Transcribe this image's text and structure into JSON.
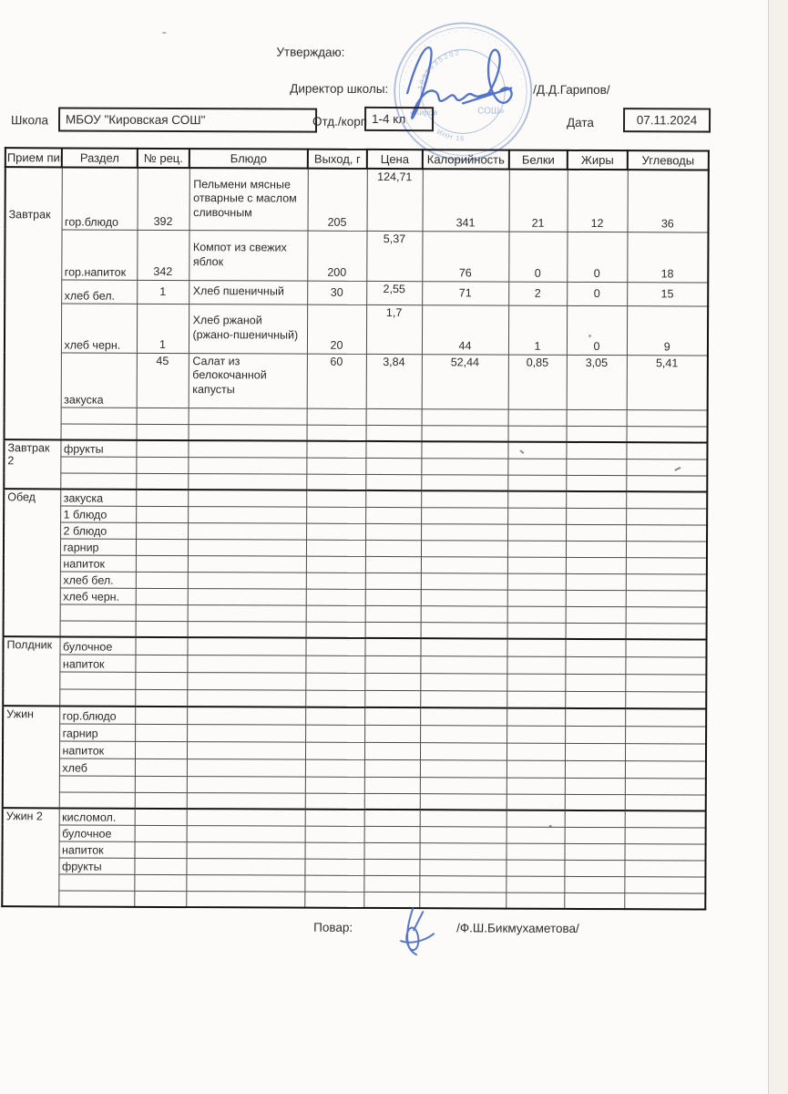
{
  "header": {
    "approve": "Утверждаю:",
    "director_label": "Директор школы:",
    "director_sign": "/Д.Д.Гарипов/",
    "school_label": "Школа",
    "school_value": "МБОУ \"Кировская СОШ\"",
    "dept_label": "Отд./корп",
    "dept_value": "1-4 кл",
    "date_label": "Дата",
    "date_value": "07.11.2024"
  },
  "stamp": {
    "ring_text": "· · · · · · · · · · · · · · · · · · · · · · · · · · · · · · · ·",
    "arc_number": "1031635202",
    "center_left": "«Киров",
    "center_right": "СОШ»",
    "bottom_text": "ИНН 16"
  },
  "table": {
    "columns": [
      "Прием пищи",
      "Раздел",
      "№ рец.",
      "Блюдо",
      "Выход, г",
      "Цена",
      "Калорийность",
      "Белки",
      "Жиры",
      "Углеводы"
    ],
    "blocks": [
      {
        "meal": "Завтрак",
        "rows": [
          {
            "razdel": "гор.блюдо",
            "rec": "392",
            "dish": "Пельмени мясные отварные с маслом сливочным",
            "out": "205",
            "price": "124,71",
            "kcal": "341",
            "prot": "21",
            "fat": "12",
            "carb": "36"
          },
          {
            "razdel": "гор.напиток",
            "rec": "342",
            "dish": "Компот из свежих яблок",
            "out": "200",
            "price": "5,37",
            "kcal": "76",
            "prot": "0",
            "fat": "0",
            "carb": "18"
          },
          {
            "razdel": "хлеб бел.",
            "rec": "1",
            "dish": "Хлеб пшеничный",
            "out": "30",
            "price": "2,55",
            "kcal": "71",
            "prot": "2",
            "fat": "0",
            "carb": "15"
          },
          {
            "razdel": "хлеб черн.",
            "rec": "1",
            "dish": "Хлеб ржаной (ржано-пшеничный)",
            "out": "20",
            "price": "1,7",
            "kcal": "44",
            "prot": "1",
            "fat": "0",
            "carb": "9"
          },
          {
            "razdel": "закуска",
            "rec": "45",
            "dish": "Салат из белокочанной капусты",
            "out": "60",
            "price": "3,84",
            "kcal": "52,44",
            "prot": "0,85",
            "fat": "3,05",
            "carb": "5,41"
          },
          {},
          {}
        ]
      },
      {
        "meal": "Завтрак 2",
        "rows": [
          {
            "razdel": "фрукты"
          },
          {},
          {}
        ]
      },
      {
        "meal": "Обед",
        "rows": [
          {
            "razdel": "закуска"
          },
          {
            "razdel": "1 блюдо"
          },
          {
            "razdel": "2 блюдо"
          },
          {
            "razdel": "гарнир"
          },
          {
            "razdel": "напиток"
          },
          {
            "razdel": "хлеб бел."
          },
          {
            "razdel": "хлеб черн."
          },
          {},
          {}
        ]
      },
      {
        "meal": "Полдник",
        "rows": [
          {
            "razdel": "булочное"
          },
          {
            "razdel": "напиток"
          },
          {},
          {}
        ]
      },
      {
        "meal": "Ужин",
        "rows": [
          {
            "razdel": "гор.блюдо"
          },
          {
            "razdel": "гарнир"
          },
          {
            "razdel": "напиток"
          },
          {
            "razdel": "хлеб"
          },
          {},
          {}
        ]
      },
      {
        "meal": "Ужин 2",
        "rows": [
          {
            "razdel": "кисломол."
          },
          {
            "razdel": "булочное"
          },
          {
            "razdel": "напиток"
          },
          {
            "razdel": "фрукты"
          },
          {},
          {}
        ]
      }
    ]
  },
  "footer": {
    "cook_label": "Повар:",
    "cook_sign": "/Ф.Ш.Бикмухаметова/"
  },
  "colors": {
    "stamp_blue": "#5c82cd",
    "signature_blue": "#3c60c4",
    "ink": "#2e2e2e"
  }
}
